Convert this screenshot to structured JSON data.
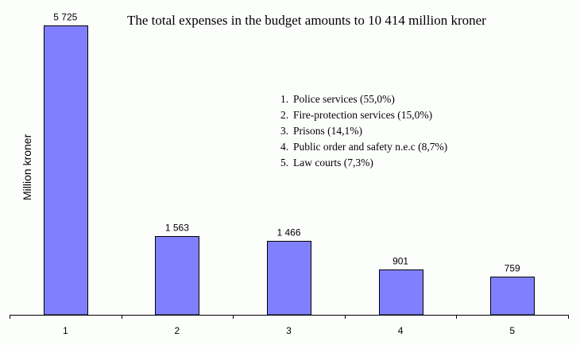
{
  "chart_data": {
    "type": "bar",
    "title": "The total expenses in the budget amounts to 10 414 million kroner",
    "xlabel": "",
    "ylabel": "Million kroner",
    "categories": [
      "1",
      "2",
      "3",
      "4",
      "5"
    ],
    "values": [
      5725,
      1563,
      1466,
      901,
      759
    ],
    "value_labels": [
      "5 725",
      "1 563",
      "1 466",
      "901",
      "759"
    ],
    "ylim": [
      0,
      5725
    ],
    "grid": false,
    "bar_color": "#8080ff",
    "legend_placement": "top-right",
    "legend": [
      {
        "num": "1.",
        "label": "Police services (55,0%)"
      },
      {
        "num": "2.",
        "label": "Fire-protection services (15,0%)"
      },
      {
        "num": "3.",
        "label": "Prisons (14,1%)"
      },
      {
        "num": "4.",
        "label": "Public order and safety n.e.c (8,7%)"
      },
      {
        "num": "5.",
        "label": "Law courts (7,3%)"
      }
    ]
  }
}
